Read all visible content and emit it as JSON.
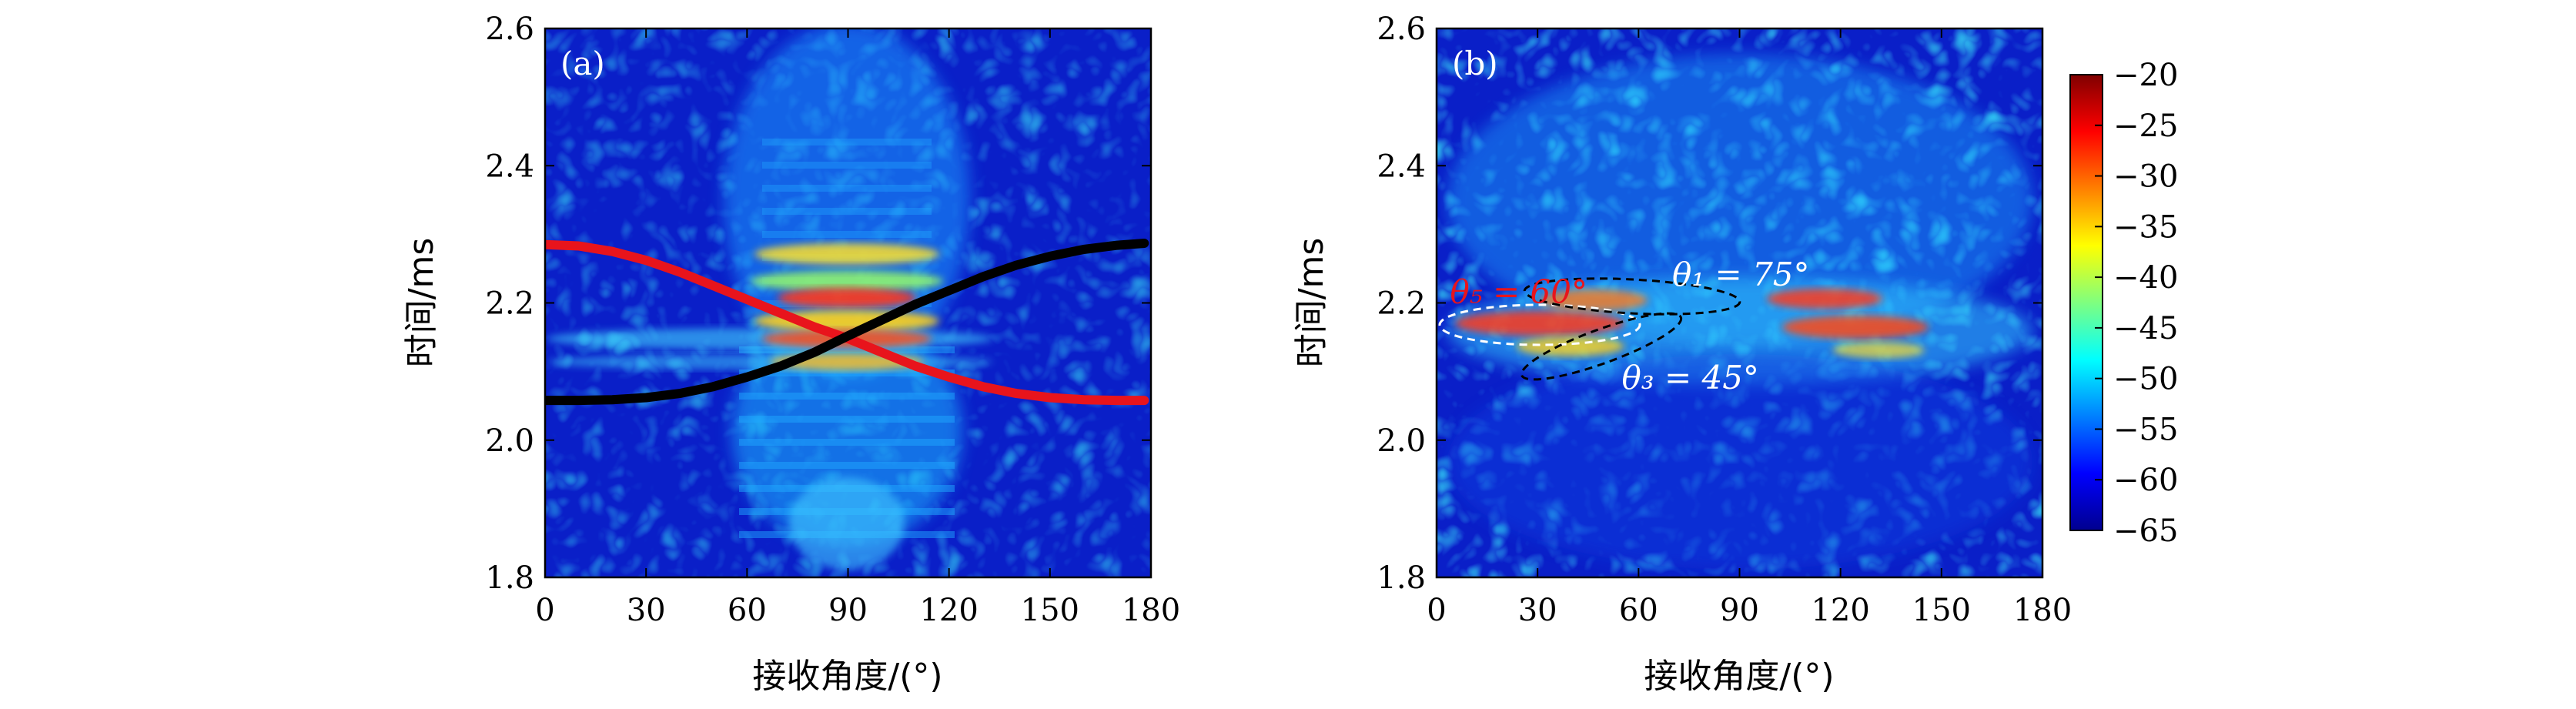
{
  "chart_data": [
    {
      "type": "heatmap",
      "panel_label": "(a)",
      "xlabel": "接收角度/(°)",
      "ylabel": "时间/ms",
      "xlim": [
        0,
        180
      ],
      "ylim": [
        1.8,
        2.6
      ],
      "xticks": [
        "0",
        "30",
        "60",
        "90",
        "120",
        "150",
        "180"
      ],
      "yticks": [
        "1.8",
        "2.0",
        "2.2",
        "2.4",
        "2.6"
      ],
      "series": [
        {
          "color": "#e8141c",
          "x": [
            0,
            10,
            20,
            30,
            40,
            50,
            60,
            70,
            80,
            90,
            100,
            110,
            120,
            130,
            140,
            150,
            160,
            170,
            178
          ],
          "y": [
            2.285,
            2.283,
            2.275,
            2.262,
            2.245,
            2.225,
            2.205,
            2.185,
            2.165,
            2.148,
            2.128,
            2.108,
            2.092,
            2.078,
            2.068,
            2.062,
            2.059,
            2.058,
            2.058
          ]
        },
        {
          "color": "#000000",
          "x": [
            0,
            10,
            20,
            30,
            40,
            50,
            60,
            70,
            80,
            90,
            100,
            110,
            120,
            130,
            140,
            150,
            160,
            170,
            178
          ],
          "y": [
            2.058,
            2.058,
            2.059,
            2.062,
            2.068,
            2.078,
            2.092,
            2.108,
            2.128,
            2.152,
            2.175,
            2.198,
            2.218,
            2.238,
            2.255,
            2.268,
            2.278,
            2.284,
            2.287
          ]
        }
      ]
    },
    {
      "type": "heatmap",
      "panel_label": "(b)",
      "xlabel": "接收角度/(°)",
      "ylabel": "时间/ms",
      "xlim": [
        0,
        180
      ],
      "ylim": [
        1.8,
        2.6
      ],
      "xticks": [
        "0",
        "30",
        "60",
        "90",
        "120",
        "150",
        "180"
      ],
      "yticks": [
        "1.8",
        "2.0",
        "2.2",
        "2.4",
        "2.6"
      ],
      "annotations": [
        {
          "text": "θ₁ = 75°",
          "color": "#ffffff",
          "x": 70,
          "y": 2.225
        },
        {
          "text": "θ₅ = 60°",
          "color": "#e8141c",
          "x": 4,
          "y": 2.2
        },
        {
          "text": "θ₃ = 45°",
          "color": "#ffffff",
          "x": 55,
          "y": 2.075
        }
      ],
      "colorbar": {
        "range": [
          -65,
          -20
        ],
        "ticks": [
          "−20",
          "−25",
          "−30",
          "−35",
          "−40",
          "−45",
          "−50",
          "−55",
          "−60",
          "−65"
        ]
      }
    }
  ]
}
